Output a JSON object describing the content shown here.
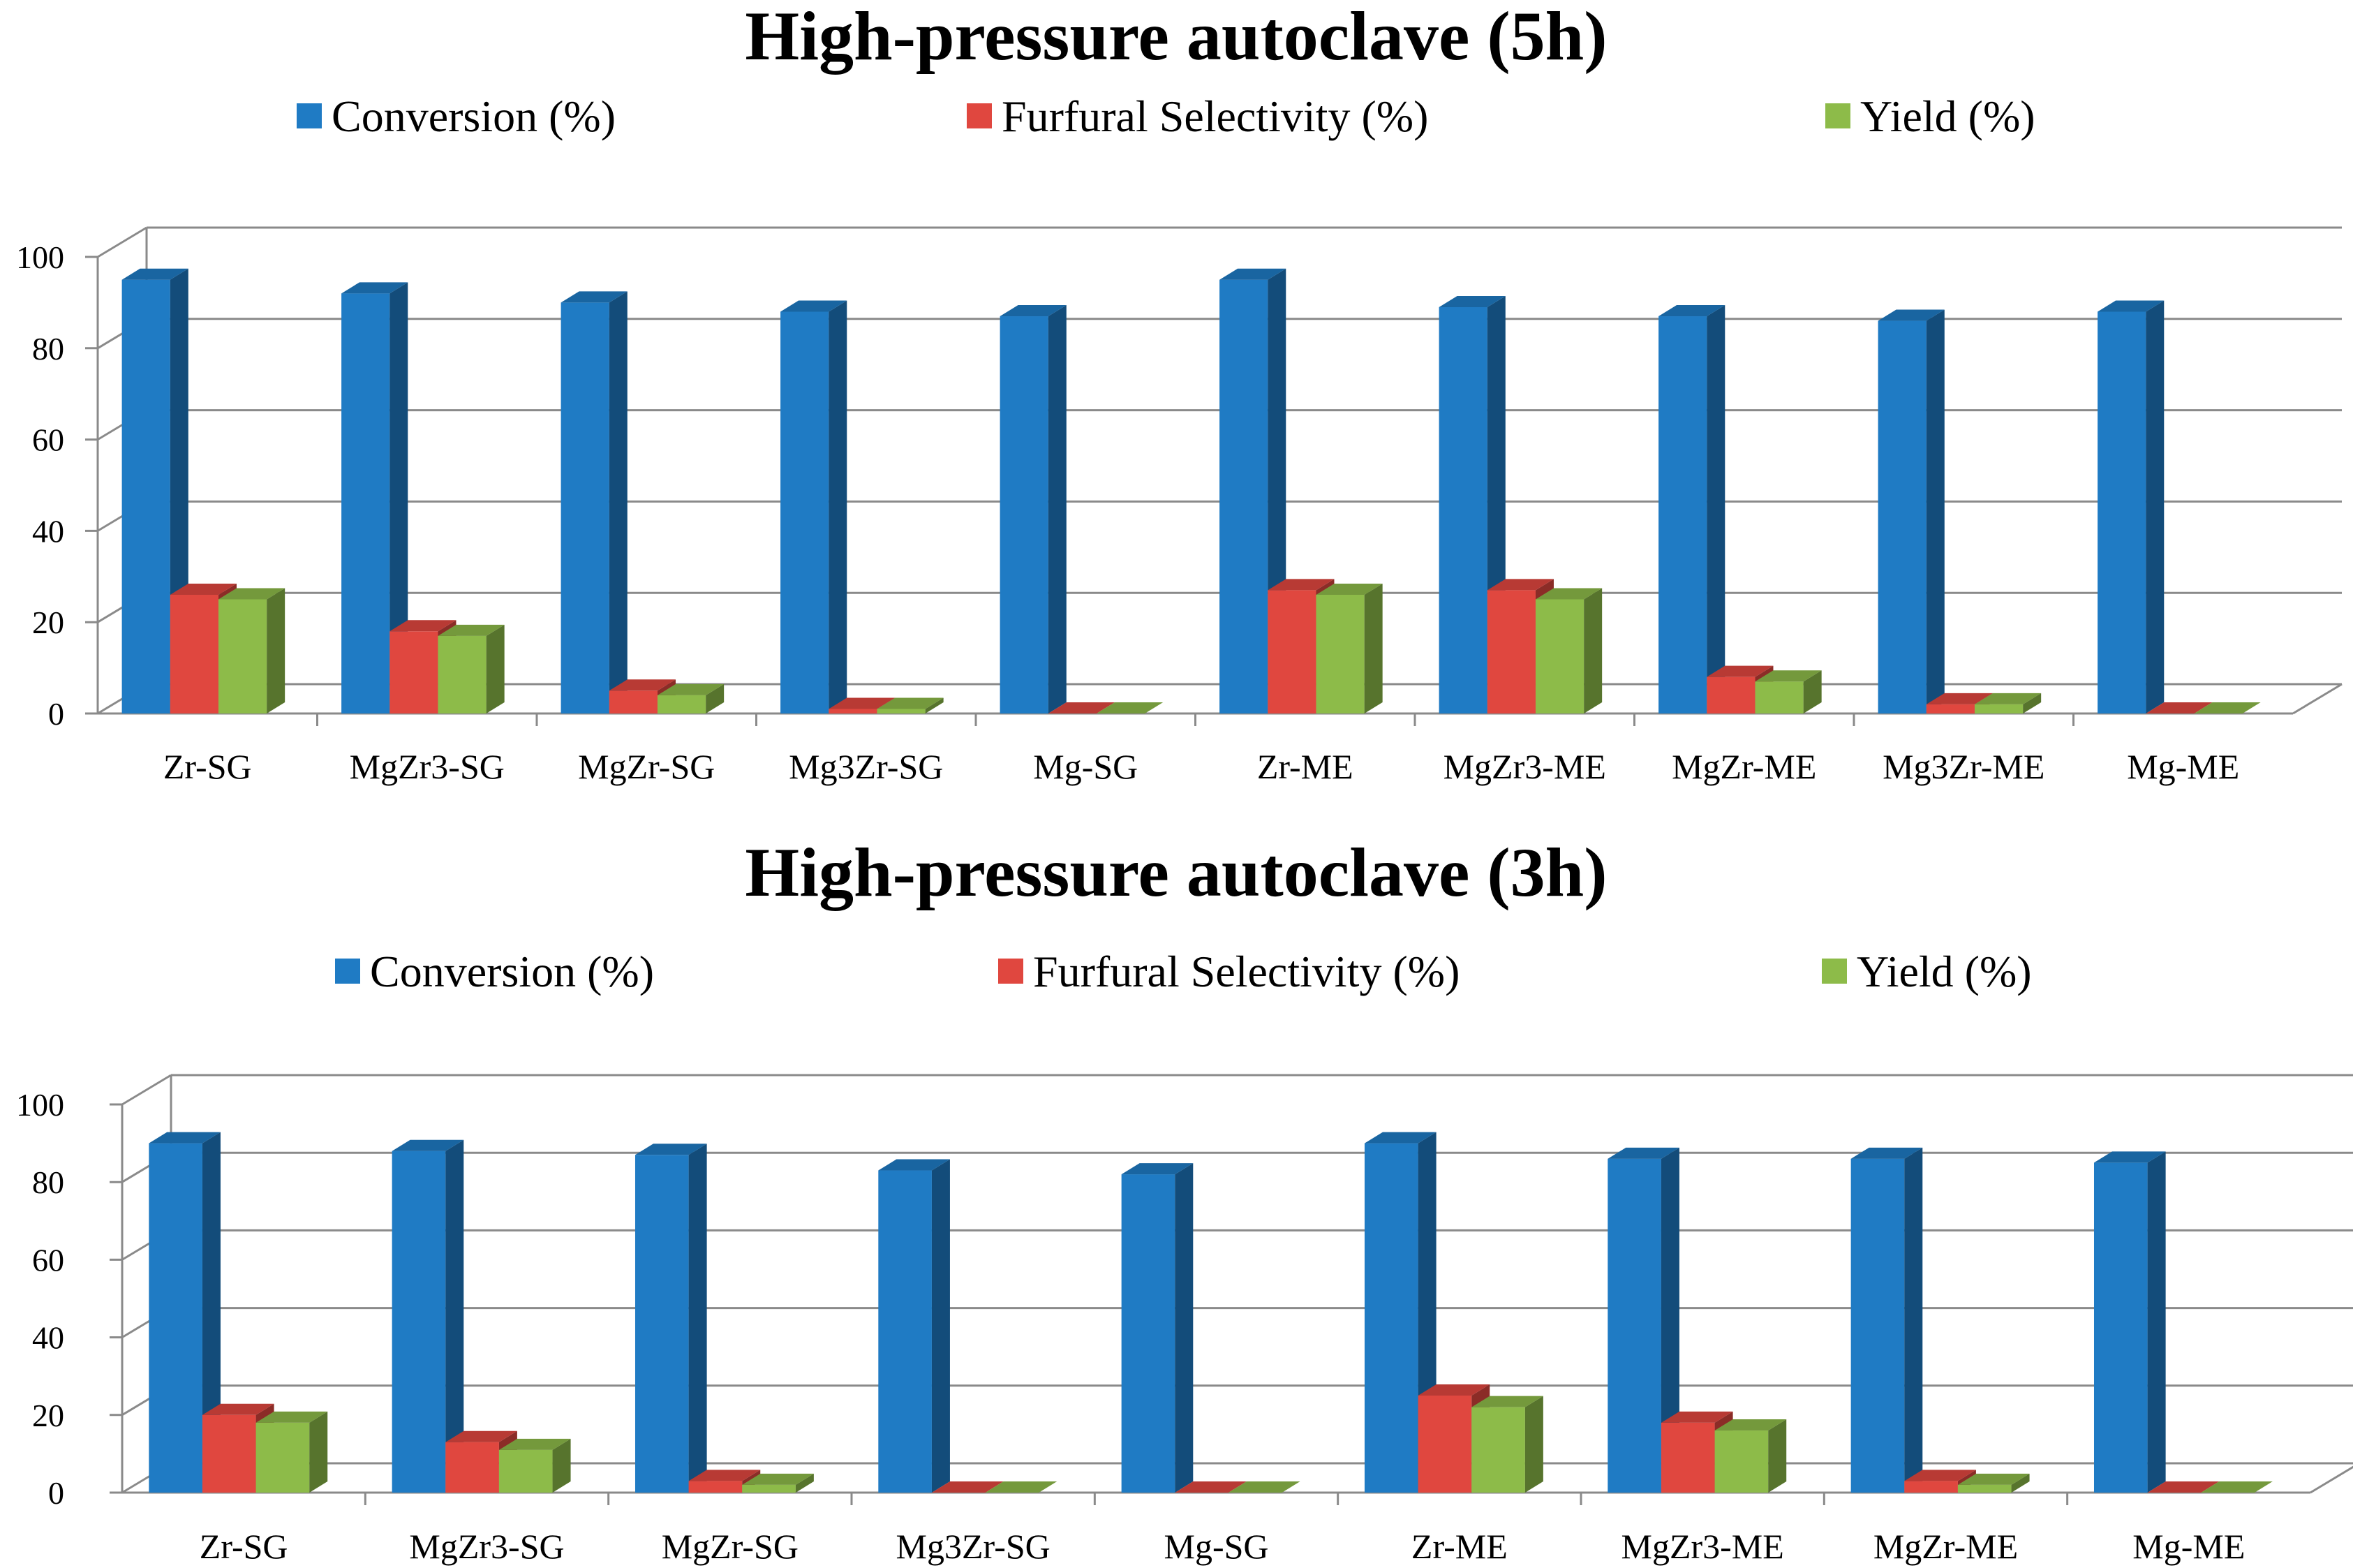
{
  "chart_data": [
    {
      "type": "bar",
      "title": "High-pressure autoclave (5h)",
      "categories": [
        "Zr-SG",
        "MgZr3-SG",
        "MgZr-SG",
        "Mg3Zr-SG",
        "Mg-SG",
        "Zr-ME",
        "MgZr3-ME",
        "MgZr-ME",
        "Mg3Zr-ME",
        "Mg-ME"
      ],
      "series": [
        {
          "name": "Conversion (%)",
          "color": "#1F7BC4",
          "values": [
            95,
            92,
            90,
            88,
            87,
            95,
            89,
            87,
            86,
            88
          ]
        },
        {
          "name": "Furfural Selectivity (%)",
          "color": "#E0473F",
          "values": [
            26,
            18,
            5,
            1,
            0,
            27,
            27,
            8,
            2,
            0
          ]
        },
        {
          "name": "Yield (%)",
          "color": "#8DBB49",
          "values": [
            25,
            17,
            4,
            1,
            0,
            26,
            25,
            7,
            2,
            0
          ]
        }
      ],
      "ylim": [
        0,
        100
      ],
      "yticks": [
        "0",
        "20",
        "40",
        "60",
        "80",
        "100"
      ],
      "xlabel": "",
      "ylabel": "",
      "grid": true,
      "legend": "top"
    },
    {
      "type": "bar",
      "title": "High-pressure autoclave (3h)",
      "categories": [
        "Zr-SG",
        "MgZr3-SG",
        "MgZr-SG",
        "Mg3Zr-SG",
        "Mg-SG",
        "Zr-ME",
        "MgZr3-ME",
        "MgZr-ME",
        "Mg-ME"
      ],
      "series": [
        {
          "name": "Conversion (%)",
          "color": "#1F7BC4",
          "values": [
            90,
            88,
            87,
            83,
            82,
            90,
            86,
            86,
            85
          ]
        },
        {
          "name": "Furfural Selectivity (%)",
          "color": "#E0473F",
          "values": [
            20,
            13,
            3,
            0,
            0,
            25,
            18,
            3,
            0
          ]
        },
        {
          "name": "Yield (%)",
          "color": "#8DBB49",
          "values": [
            18,
            11,
            2,
            0,
            0,
            22,
            16,
            2,
            0
          ]
        }
      ],
      "ylim": [
        0,
        100
      ],
      "yticks": [
        "0",
        "20",
        "40",
        "60",
        "80",
        "100"
      ],
      "xlabel": "",
      "ylabel": "",
      "grid": true,
      "legend": "top"
    }
  ]
}
